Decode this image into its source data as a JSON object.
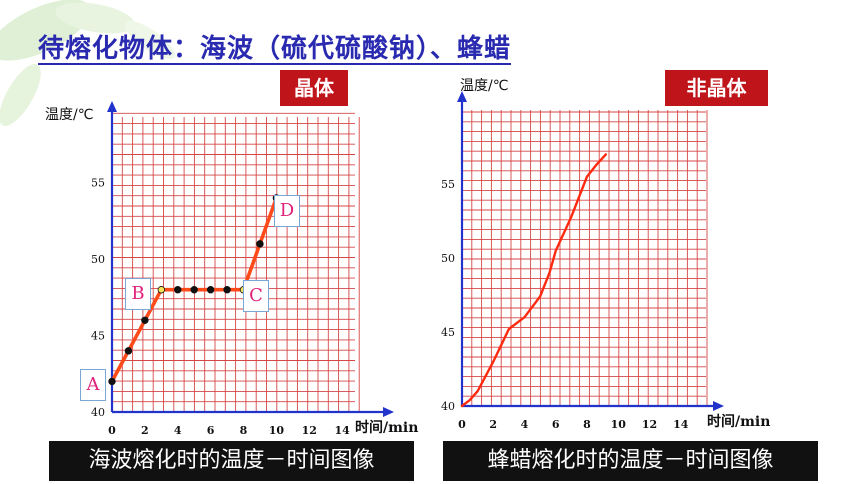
{
  "page": {
    "title": "待熔化物体：海波（硫代硫酸钠）、蜂蜡"
  },
  "chart_data": [
    {
      "type": "line",
      "badge": "晶体",
      "ylabel": "温度/℃",
      "xlabel": "时间/min",
      "caption": "海波熔化时的温度－时间图像",
      "xticks": [
        0,
        2,
        4,
        6,
        8,
        10,
        12,
        14
      ],
      "yticks": [
        40,
        45,
        50,
        55
      ],
      "xlim": [
        0,
        16
      ],
      "ylim": [
        40,
        59.3
      ],
      "grid": true,
      "line_color": "#ff4a1a",
      "series": [
        {
          "x": [
            0,
            1,
            2,
            3,
            4,
            5,
            6,
            7,
            8,
            9,
            10
          ],
          "y": [
            42,
            44,
            46,
            48,
            48,
            48,
            48,
            48,
            48,
            51,
            54
          ]
        }
      ],
      "point_labels": [
        {
          "text": "A",
          "x": 0,
          "y": 42
        },
        {
          "text": "B",
          "x": 3,
          "y": 48
        },
        {
          "text": "C",
          "x": 8,
          "y": 48
        },
        {
          "text": "D",
          "x": 10,
          "y": 54
        }
      ]
    },
    {
      "type": "line",
      "badge": "非晶体",
      "ylabel": "温度/℃",
      "xlabel": "时间/min",
      "caption": "蜂蜡熔化时的温度－时间图像",
      "xticks": [
        0,
        2,
        4,
        6,
        8,
        10,
        12,
        14
      ],
      "yticks": [
        40,
        45,
        50,
        55
      ],
      "xlim": [
        0,
        16
      ],
      "ylim": [
        40,
        60
      ],
      "grid": true,
      "line_color": "#ff2a10",
      "series": [
        {
          "x": [
            0,
            0.5,
            1,
            2,
            3,
            4,
            5,
            5.6,
            6,
            7,
            8,
            8.6,
            9.2
          ],
          "y": [
            40,
            40.4,
            41,
            43,
            45.2,
            46,
            47.4,
            49,
            50.5,
            52.8,
            55.5,
            56.3,
            57
          ]
        }
      ]
    }
  ]
}
